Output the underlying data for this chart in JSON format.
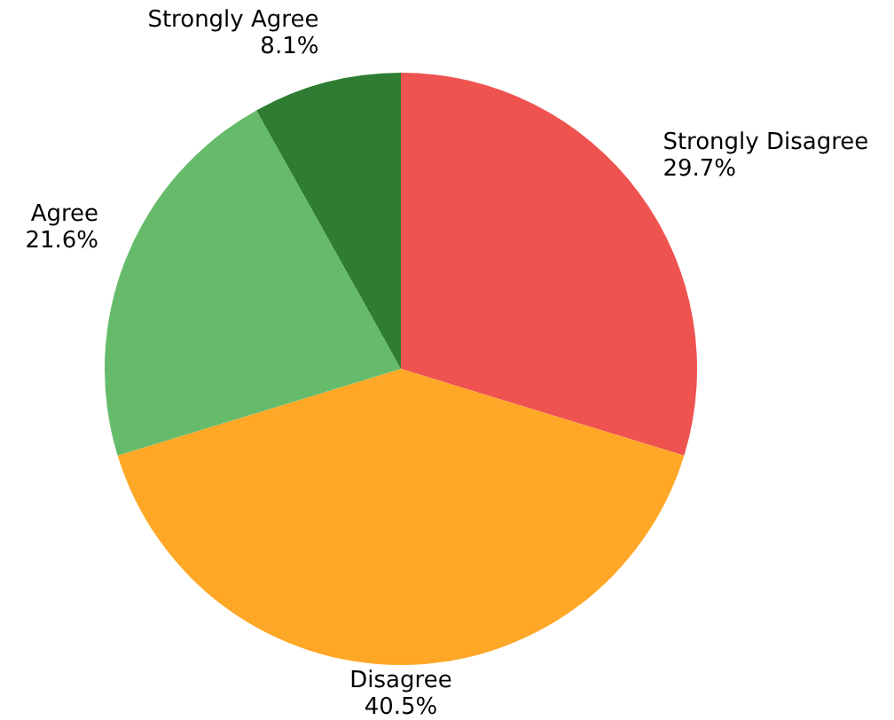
{
  "chart_data": {
    "type": "pie",
    "categories": [
      "Strongly Disagree",
      "Disagree",
      "Agree",
      "Strongly Agree"
    ],
    "values": [
      29.7,
      40.5,
      21.6,
      8.1
    ],
    "value_labels": [
      "29.7%",
      "40.5%",
      "21.6%",
      "8.1%"
    ],
    "colors": [
      "#ef5350",
      "#ffa726",
      "#66bb6a",
      "#2e7d32"
    ]
  }
}
